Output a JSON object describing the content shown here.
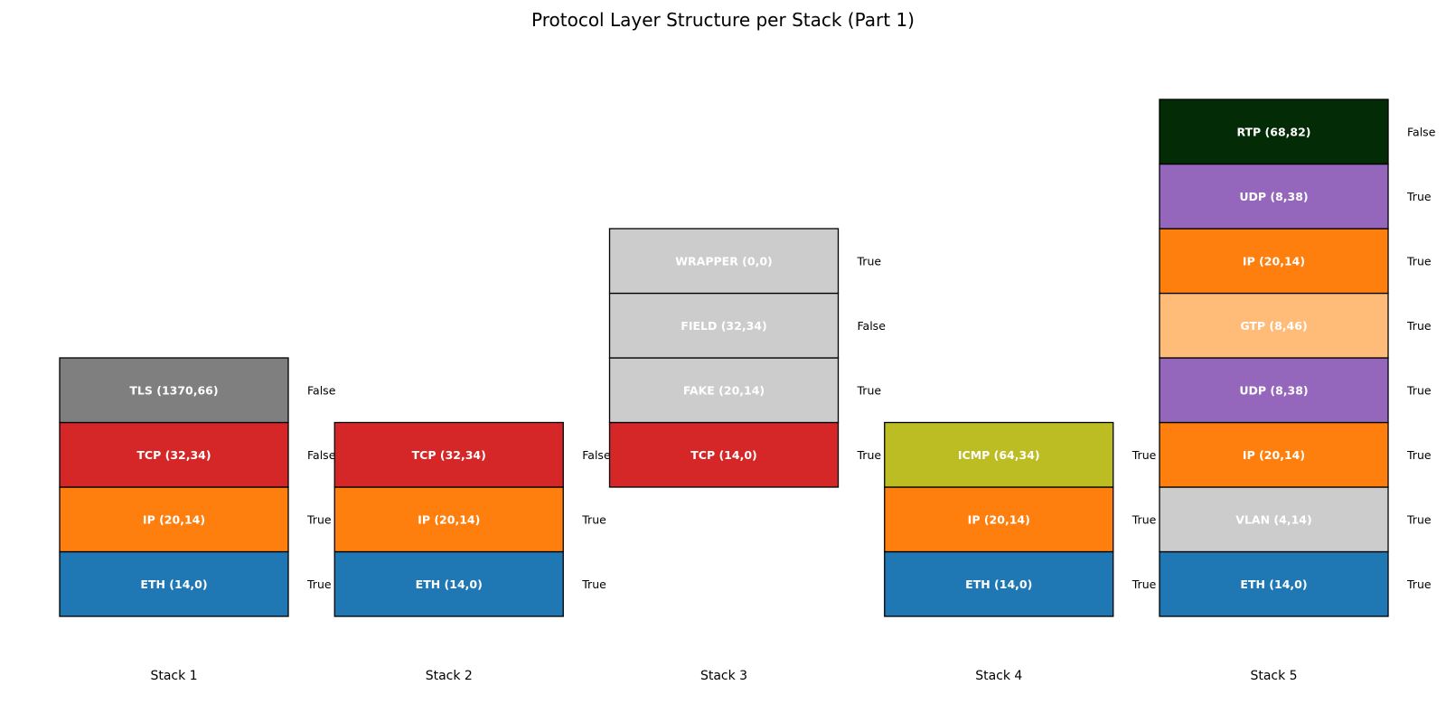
{
  "chart_data": {
    "type": "stacked-blocks",
    "title": "Protocol Layer Structure per Stack (Part 1)",
    "legend": "none",
    "grid": false,
    "stacks": [
      {
        "label": "Stack 1",
        "layers": [
          {
            "label": "ETH (14,0)",
            "flag": "True",
            "color": "#1f77b4",
            "text_color": "#ffffff"
          },
          {
            "label": "IP (20,14)",
            "flag": "True",
            "color": "#ff7f0e",
            "text_color": "#ffffff"
          },
          {
            "label": "TCP (32,34)",
            "flag": "False",
            "color": "#d62728",
            "text_color": "#ffffff"
          },
          {
            "label": "TLS (1370,66)",
            "flag": "False",
            "color": "#7f7f7f",
            "text_color": "#ffffff"
          }
        ]
      },
      {
        "label": "Stack 2",
        "layers": [
          {
            "label": "ETH (14,0)",
            "flag": "True",
            "color": "#1f77b4",
            "text_color": "#ffffff"
          },
          {
            "label": "IP (20,14)",
            "flag": "True",
            "color": "#ff7f0e",
            "text_color": "#ffffff"
          },
          {
            "label": "TCP (32,34)",
            "flag": "False",
            "color": "#d62728",
            "text_color": "#ffffff"
          }
        ]
      },
      {
        "label": "Stack 3",
        "base_level": 2,
        "layers": [
          {
            "label": "TCP (14,0)",
            "flag": "True",
            "color": "#d62728",
            "text_color": "#ffffff"
          },
          {
            "label": "FAKE (20,14)",
            "flag": "True",
            "color": "#cccccc",
            "text_color": "#ffffff"
          },
          {
            "label": "FIELD (32,34)",
            "flag": "False",
            "color": "#cccccc",
            "text_color": "#ffffff"
          },
          {
            "label": "WRAPPER (0,0)",
            "flag": "True",
            "color": "#cccccc",
            "text_color": "#ffffff"
          }
        ]
      },
      {
        "label": "Stack 4",
        "layers": [
          {
            "label": "ETH (14,0)",
            "flag": "True",
            "color": "#1f77b4",
            "text_color": "#ffffff"
          },
          {
            "label": "IP (20,14)",
            "flag": "True",
            "color": "#ff7f0e",
            "text_color": "#ffffff"
          },
          {
            "label": "ICMP (64,34)",
            "flag": "True",
            "color": "#bcbd22",
            "text_color": "#ffffff"
          }
        ]
      },
      {
        "label": "Stack 5",
        "layers": [
          {
            "label": "ETH (14,0)",
            "flag": "True",
            "color": "#1f77b4",
            "text_color": "#ffffff"
          },
          {
            "label": "VLAN (4,14)",
            "flag": "True",
            "color": "#cccccc",
            "text_color": "#ffffff"
          },
          {
            "label": "IP (20,14)",
            "flag": "True",
            "color": "#ff7f0e",
            "text_color": "#ffffff"
          },
          {
            "label": "UDP (8,38)",
            "flag": "True",
            "color": "#9467bd",
            "text_color": "#ffffff"
          },
          {
            "label": "GTP (8,46)",
            "flag": "True",
            "color": "#ffbb78",
            "text_color": "#ffffff"
          },
          {
            "label": "IP (20,14)",
            "flag": "True",
            "color": "#ff7f0e",
            "text_color": "#ffffff"
          },
          {
            "label": "UDP (8,38)",
            "flag": "True",
            "color": "#9467bd",
            "text_color": "#ffffff"
          },
          {
            "label": "RTP (68,82)",
            "flag": "False",
            "color": "#032b06",
            "text_color": "#ffffff"
          }
        ]
      }
    ]
  }
}
